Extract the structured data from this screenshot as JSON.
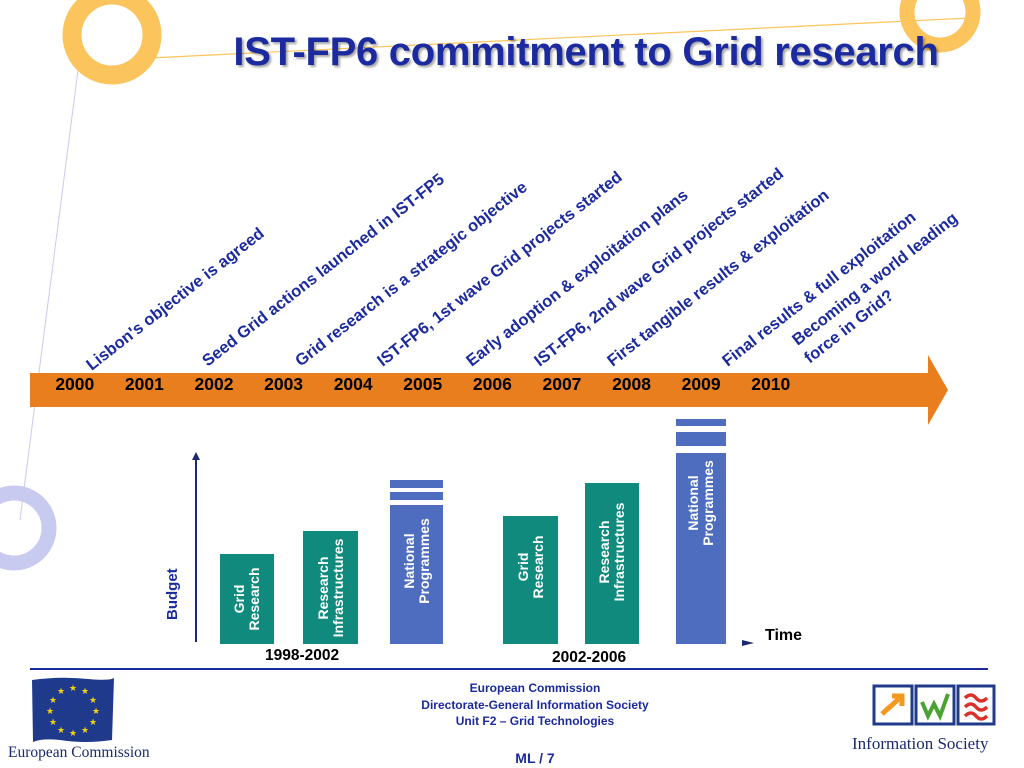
{
  "title": "IST-FP6 commitment to Grid research",
  "milestones": [
    "Lisbon's objective is agreed",
    "Seed Grid actions launched in IST-FP5",
    "Grid research is a strategic objective",
    "IST-FP6, 1st wave Grid projects started",
    "Early adoption & exploitation plans",
    "IST-FP6, 2nd wave Grid projects started",
    "First tangible results & exploitation",
    "Final results & full exploitation",
    "Becoming a world leading",
    "force in Grid?"
  ],
  "years": [
    "2000",
    "2001",
    "2002",
    "2003",
    "2004",
    "2005",
    "2006",
    "2007",
    "2008",
    "2009",
    "2010"
  ],
  "budget_label": "Budget",
  "time_label": "Time",
  "bars": [
    {
      "line1": "Grid",
      "line2": "Research"
    },
    {
      "line1": "Research",
      "line2": "Infrastructures"
    },
    {
      "line1": "National",
      "line2": "Programmes"
    },
    {
      "line1": "Grid",
      "line2": "Research"
    },
    {
      "line1": "Research",
      "line2": "Infrastructures"
    },
    {
      "line1": "National",
      "line2": "Programmes"
    }
  ],
  "periods": [
    "1998-2002",
    "2002-2006"
  ],
  "footer": {
    "line1": "European Commission",
    "line2": "Directorate-General Information Society",
    "line3": "Unit F2 – Grid Technologies",
    "page": "ML / 7",
    "ec_logo_text": "European Commission",
    "is_logo_text": "Information Society"
  },
  "colors": {
    "title": "#1b2a9e",
    "timeline_arrow": "#e97e1f",
    "bar_teal": "#0f8a7d",
    "bar_blue": "#4e6dbf",
    "ring_orange": "#fcc45c",
    "ring_lavender": "#c8caf0",
    "eu_flag": "#1f3a8a",
    "eu_star": "#f5d10f"
  }
}
